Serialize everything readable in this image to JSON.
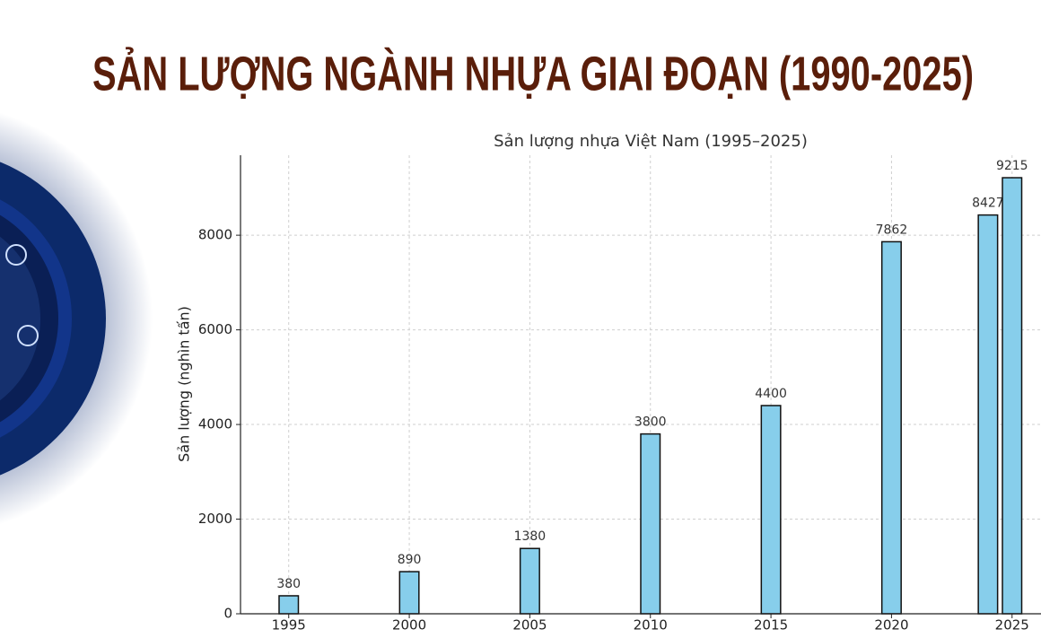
{
  "header": {
    "title": "SẢN LƯỢNG NGÀNH NHỰA GIAI ĐOẠN (1990-2025)"
  },
  "chart_data": {
    "type": "bar",
    "title": "Sản lượng nhựa Việt Nam (1995–2025)",
    "y_label": "Sản lượng (nghìn tấn)",
    "x": [
      1995,
      2000,
      2005,
      2010,
      2015,
      2020,
      2024,
      2025
    ],
    "values": [
      380,
      890,
      1380,
      3800,
      4400,
      7862,
      8427,
      9215
    ],
    "color": "#87ceeb",
    "edgecolor": "#111111",
    "xlim": [
      1993,
      2026.2
    ],
    "xticks": [
      1995,
      2000,
      2005,
      2010,
      2015,
      2020,
      2025
    ],
    "ylim": [
      0,
      9690
    ],
    "yticks": [
      0,
      2000,
      4000,
      6000,
      8000
    ],
    "grid": true
  }
}
